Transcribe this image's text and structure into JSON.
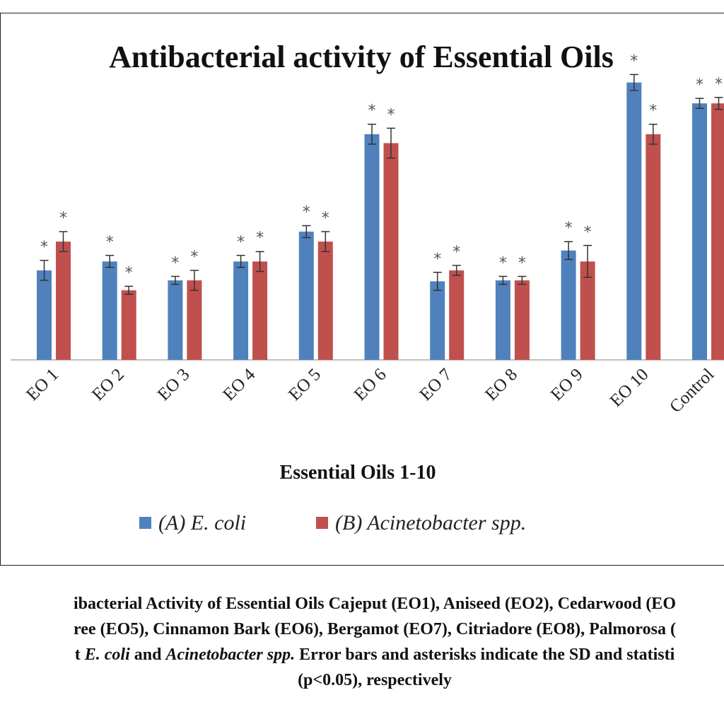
{
  "chart_data": {
    "type": "bar",
    "title": "Antibacterial activity of Essential Oils",
    "xlabel": "Essential Oils 1-10",
    "categories": [
      "EO 1",
      "EO 2",
      "EO 3",
      "EO 4",
      "EO 5",
      "EO 6",
      "EO 7",
      "EO 8",
      "EO 9",
      "EO 10",
      "Control"
    ],
    "series": [
      {
        "name": "(A) E. coli",
        "color": "#4f81bd",
        "values": [
          9.0,
          9.9,
          8.0,
          9.9,
          12.9,
          22.7,
          7.9,
          8.0,
          11.0,
          27.9,
          25.8
        ],
        "errors": [
          1.0,
          0.6,
          0.4,
          0.6,
          0.6,
          1.0,
          0.9,
          0.4,
          0.9,
          0.8,
          0.5
        ],
        "significant": [
          true,
          true,
          true,
          true,
          true,
          true,
          true,
          true,
          true,
          true,
          true
        ]
      },
      {
        "name": "(B) Acinetobacter spp.",
        "color": "#c0504d",
        "values": [
          11.9,
          7.0,
          8.0,
          9.9,
          11.9,
          21.8,
          9.0,
          8.0,
          9.9,
          22.7,
          25.8
        ],
        "errors": [
          1.0,
          0.4,
          1.0,
          1.0,
          1.0,
          1.5,
          0.5,
          0.4,
          1.6,
          1.0,
          0.6
        ],
        "significant": [
          true,
          true,
          true,
          true,
          true,
          true,
          true,
          true,
          true,
          true,
          true
        ]
      }
    ],
    "ylim": [
      0,
      32
    ],
    "grid": false,
    "legend_position": "bottom"
  },
  "caption": {
    "line1": "ibacterial Activity of Essential Oils Cajeput (EO1), Aniseed (EO2), Cedarwood (EO",
    "line2": "ree (EO5), Cinnamon Bark (EO6), Bergamot (EO7), Citriadore (EO8), Palmorosa (",
    "line3_prefix": "t ",
    "line3_ecoli": "E. coli",
    "line3_and": " and ",
    "line3_acineto": "Acinetobacter spp.",
    "line3_suffix": " Error bars and asterisks indicate the SD and statisti",
    "line4": "(p<0.05), respectively"
  }
}
